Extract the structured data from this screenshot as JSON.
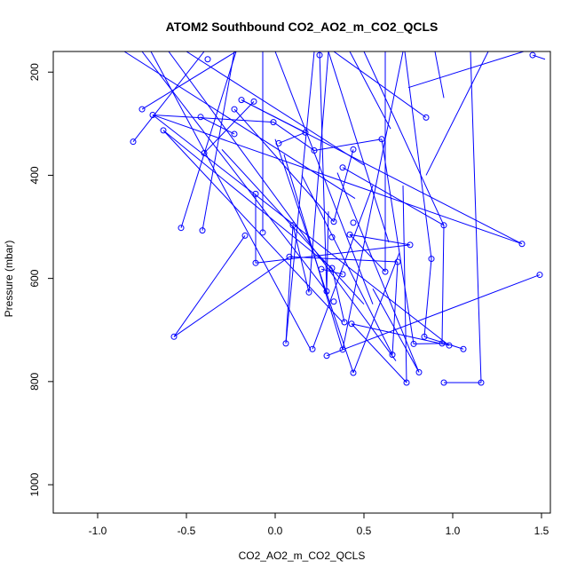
{
  "chart_data": {
    "type": "scatter",
    "title": "ATOM2 Southbound CO2_AO2_m_CO2_QCLS",
    "xlabel": "CO2_AO2_m_CO2_QCLS",
    "ylabel": "Pressure (mbar)",
    "xlim": [
      -1.25,
      1.55
    ],
    "ylim": [
      1055,
      160
    ],
    "y_reversed": true,
    "x_ticks": [
      -1.0,
      -0.5,
      0.0,
      0.5,
      1.0,
      1.5
    ],
    "x_tick_labels": [
      "-1.0",
      "-0.5",
      "0.0",
      "0.5",
      "1.0",
      "1.5"
    ],
    "y_ticks": [
      200,
      400,
      600,
      800,
      1000
    ],
    "y_tick_labels": [
      "200",
      "400",
      "600",
      "800",
      "1000"
    ],
    "grid": false,
    "legend": "none",
    "series_color": "#0000ff",
    "points": [
      [
        -0.38,
        175
      ],
      [
        1.45,
        167
      ],
      [
        0.25,
        167
      ],
      [
        -0.75,
        272
      ],
      [
        -0.69,
        283
      ],
      [
        -0.42,
        287
      ],
      [
        -0.19,
        254
      ],
      [
        -0.12,
        257
      ],
      [
        -0.23,
        272
      ],
      [
        0.85,
        288
      ],
      [
        -0.01,
        297
      ],
      [
        -0.63,
        313
      ],
      [
        -0.8,
        335
      ],
      [
        0.17,
        317
      ],
      [
        -0.23,
        320
      ],
      [
        0.6,
        330
      ],
      [
        0.02,
        338
      ],
      [
        0.22,
        352
      ],
      [
        0.44,
        350
      ],
      [
        -0.4,
        357
      ],
      [
        0.38,
        385
      ],
      [
        -0.11,
        436
      ],
      [
        0.33,
        490
      ],
      [
        0.44,
        492
      ],
      [
        0.95,
        497
      ],
      [
        0.1,
        497
      ],
      [
        -0.53,
        502
      ],
      [
        -0.41,
        507
      ],
      [
        -0.07,
        511
      ],
      [
        -0.17,
        517
      ],
      [
        0.42,
        515
      ],
      [
        0.32,
        520
      ],
      [
        0.76,
        535
      ],
      [
        1.39,
        533
      ],
      [
        0.08,
        558
      ],
      [
        0.88,
        562
      ],
      [
        -0.11,
        570
      ],
      [
        0.69,
        568
      ],
      [
        0.26,
        582
      ],
      [
        0.32,
        580
      ],
      [
        0.38,
        592
      ],
      [
        0.62,
        587
      ],
      [
        1.49,
        593
      ],
      [
        0.29,
        625
      ],
      [
        0.19,
        627
      ],
      [
        0.33,
        645
      ],
      [
        0.39,
        685
      ],
      [
        0.43,
        688
      ],
      [
        -0.57,
        713
      ],
      [
        0.84,
        713
      ],
      [
        0.06,
        726
      ],
      [
        0.78,
        727
      ],
      [
        0.94,
        726
      ],
      [
        0.98,
        730
      ],
      [
        0.21,
        737
      ],
      [
        0.38,
        738
      ],
      [
        1.06,
        737
      ],
      [
        0.29,
        750
      ],
      [
        0.66,
        748
      ],
      [
        0.44,
        783
      ],
      [
        0.81,
        782
      ],
      [
        0.74,
        802
      ],
      [
        0.95,
        802
      ],
      [
        1.16,
        802
      ]
    ],
    "segments": [
      [
        -0.85,
        160,
        0.45,
        445
      ],
      [
        -0.75,
        160,
        0.3,
        630
      ],
      [
        -0.7,
        160,
        0.2,
        738
      ],
      [
        -0.6,
        160,
        0.68,
        760
      ],
      [
        -0.5,
        160,
        0.5,
        380
      ],
      [
        -0.4,
        160,
        -0.8,
        335
      ],
      [
        -0.22,
        160,
        -0.75,
        272
      ],
      [
        -0.22,
        160,
        -0.53,
        502
      ],
      [
        -0.23,
        160,
        -0.41,
        507
      ],
      [
        -0.07,
        160,
        -0.07,
        510
      ],
      [
        0.0,
        160,
        0.55,
        650
      ],
      [
        0.22,
        160,
        0.06,
        726
      ],
      [
        0.25,
        160,
        0.29,
        625
      ],
      [
        0.3,
        160,
        0.19,
        627
      ],
      [
        0.3,
        160,
        0.64,
        530
      ],
      [
        0.33,
        160,
        0.85,
        288
      ],
      [
        0.42,
        160,
        0.65,
        310
      ],
      [
        0.5,
        160,
        0.95,
        497
      ],
      [
        0.62,
        160,
        0.62,
        587
      ],
      [
        0.72,
        160,
        0.38,
        738
      ],
      [
        0.73,
        160,
        0.88,
        562
      ],
      [
        0.9,
        160,
        0.95,
        250
      ],
      [
        1.1,
        160,
        1.16,
        802
      ],
      [
        1.2,
        160,
        0.85,
        400
      ],
      [
        1.4,
        160,
        0.75,
        230
      ],
      [
        1.45,
        167,
        1.52,
        175
      ],
      [
        -0.69,
        283,
        -0.01,
        297
      ],
      [
        -0.69,
        283,
        1.39,
        533
      ],
      [
        -0.69,
        283,
        0.98,
        730
      ],
      [
        -0.42,
        287,
        -0.23,
        320
      ],
      [
        -0.4,
        357,
        -0.12,
        257
      ],
      [
        -0.63,
        313,
        0.38,
        685
      ],
      [
        -0.63,
        313,
        0.32,
        580
      ],
      [
        -0.23,
        272,
        0.33,
        490
      ],
      [
        -0.19,
        254,
        0.17,
        317
      ],
      [
        -0.19,
        254,
        1.39,
        533
      ],
      [
        -0.01,
        297,
        0.22,
        352
      ],
      [
        0.02,
        338,
        0.17,
        317
      ],
      [
        0.22,
        352,
        0.6,
        330
      ],
      [
        0.6,
        330,
        0.78,
        727
      ],
      [
        0.44,
        350,
        0.33,
        490
      ],
      [
        0.38,
        385,
        0.95,
        497
      ],
      [
        -0.11,
        436,
        -0.11,
        570
      ],
      [
        0.95,
        497,
        0.94,
        726
      ],
      [
        0.42,
        515,
        0.76,
        535
      ],
      [
        0.42,
        515,
        0.62,
        587
      ],
      [
        -0.11,
        570,
        0.76,
        535
      ],
      [
        0.08,
        558,
        0.69,
        568
      ],
      [
        0.69,
        568,
        0.66,
        748
      ],
      [
        0.88,
        562,
        0.84,
        713
      ],
      [
        0.32,
        580,
        0.39,
        685
      ],
      [
        0.38,
        592,
        0.26,
        582
      ],
      [
        1.49,
        593,
        0.29,
        750
      ],
      [
        0.1,
        497,
        0.06,
        726
      ],
      [
        0.1,
        497,
        0.19,
        627
      ],
      [
        -0.57,
        713,
        -0.17,
        517
      ],
      [
        -0.57,
        713,
        0.08,
        558
      ],
      [
        0.43,
        688,
        0.98,
        730
      ],
      [
        0.43,
        688,
        0.74,
        802
      ],
      [
        0.84,
        713,
        1.06,
        737
      ],
      [
        0.78,
        727,
        0.94,
        726
      ],
      [
        0.44,
        783,
        0.7,
        550
      ],
      [
        0.81,
        782,
        0.55,
        620
      ],
      [
        0.74,
        802,
        0.72,
        420
      ],
      [
        0.95,
        802,
        1.16,
        802
      ],
      [
        0.0,
        330,
        0.44,
        783
      ],
      [
        0.55,
        420,
        0.21,
        737
      ],
      [
        0.3,
        470,
        0.29,
        625
      ],
      [
        0.05,
        360,
        0.38,
        738
      ],
      [
        0.15,
        400,
        0.66,
        748
      ],
      [
        -0.3,
        350,
        0.5,
        650
      ],
      [
        0.35,
        395,
        0.81,
        782
      ]
    ]
  }
}
